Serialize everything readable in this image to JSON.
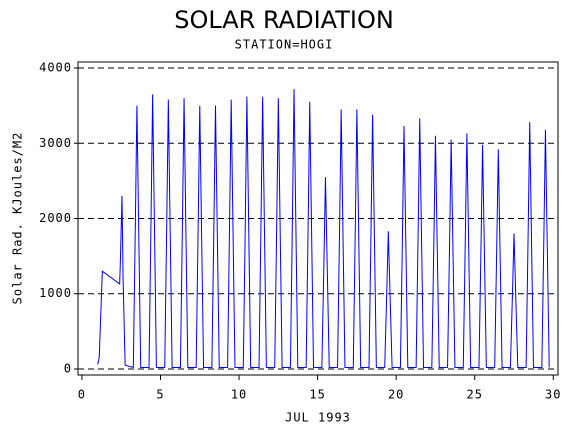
{
  "chart_data": {
    "type": "line",
    "title": "SOLAR RADIATION",
    "subtitle": "STATION=HOGI",
    "xlabel": "JUL 1993",
    "ylabel": "Solar Rad. KJoules/M2",
    "xlim": [
      -0.25,
      30.3
    ],
    "xticks": [
      0,
      5,
      10,
      15,
      20,
      25,
      30
    ],
    "ylim": [
      -80,
      4080
    ],
    "yticks": [
      0,
      1000,
      2000,
      3000,
      4000
    ],
    "grid": true,
    "series": [
      {
        "color": "#0000ff",
        "x": [
          1.0,
          1.1,
          1.3,
          2.4,
          2.45,
          2.55,
          2.62,
          2.75,
          3.27,
          3.4,
          3.5,
          3.62,
          3.74,
          4.27,
          4.4,
          4.5,
          4.62,
          4.74,
          5.27,
          5.4,
          5.5,
          5.62,
          5.74,
          6.27,
          6.4,
          6.5,
          6.62,
          6.74,
          7.27,
          7.4,
          7.5,
          7.62,
          7.74,
          8.27,
          8.4,
          8.5,
          8.62,
          8.74,
          9.27,
          9.4,
          9.5,
          9.62,
          9.74,
          10.27,
          10.4,
          10.5,
          10.62,
          10.74,
          11.27,
          11.4,
          11.5,
          11.62,
          11.74,
          12.27,
          12.4,
          12.5,
          12.62,
          12.74,
          13.27,
          13.4,
          13.5,
          13.62,
          13.74,
          14.27,
          14.4,
          14.5,
          14.62,
          14.74,
          15.27,
          15.4,
          15.5,
          15.62,
          15.74,
          16.27,
          16.4,
          16.5,
          16.62,
          16.74,
          17.27,
          17.4,
          17.5,
          17.62,
          17.74,
          18.27,
          18.4,
          18.5,
          18.62,
          18.74,
          19.27,
          19.4,
          19.5,
          19.62,
          19.74,
          20.27,
          20.4,
          20.5,
          20.62,
          20.74,
          21.27,
          21.4,
          21.5,
          21.62,
          21.74,
          22.27,
          22.4,
          22.5,
          22.62,
          22.74,
          23.27,
          23.4,
          23.5,
          23.62,
          23.74,
          24.27,
          24.4,
          24.5,
          24.62,
          24.74,
          25.27,
          25.4,
          25.5,
          25.62,
          25.74,
          26.27,
          26.4,
          26.5,
          26.62,
          26.74,
          27.27,
          27.4,
          27.5,
          27.62,
          27.74,
          28.27,
          28.4,
          28.5,
          28.62,
          28.74,
          29.27,
          29.4,
          29.5,
          29.62,
          29.74
        ],
        "values": [
          60,
          150,
          1300,
          1130,
          1450,
          2300,
          1200,
          50,
          20,
          1925,
          3500,
          1750,
          20,
          20,
          2008,
          3650,
          1825,
          20,
          20,
          1969,
          3580,
          1790,
          20,
          20,
          1980,
          3600,
          1800,
          20,
          20,
          1925,
          3500,
          1750,
          20,
          20,
          1925,
          3500,
          1750,
          20,
          20,
          1969,
          3580,
          1790,
          20,
          20,
          1991,
          3620,
          1810,
          20,
          20,
          1991,
          3620,
          1810,
          20,
          20,
          1980,
          3600,
          1800,
          20,
          20,
          2046,
          3720,
          1860,
          20,
          20,
          1953,
          3550,
          1775,
          20,
          20,
          1403,
          2550,
          1275,
          20,
          20,
          1898,
          3450,
          1725,
          20,
          20,
          1898,
          3450,
          1725,
          20,
          20,
          1859,
          3380,
          1690,
          20,
          20,
          1007,
          1830,
          915,
          20,
          20,
          1777,
          3230,
          1615,
          20,
          20,
          1832,
          3330,
          1665,
          20,
          20,
          1705,
          3100,
          1550,
          20,
          20,
          1678,
          3050,
          1525,
          20,
          20,
          1722,
          3130,
          1565,
          20,
          20,
          1639,
          2980,
          1490,
          20,
          20,
          1606,
          2920,
          1460,
          20,
          20,
          990,
          1800,
          900,
          20,
          20,
          1804,
          3280,
          1640,
          20,
          20,
          1749,
          3180,
          1590,
          20
        ]
      }
    ]
  }
}
